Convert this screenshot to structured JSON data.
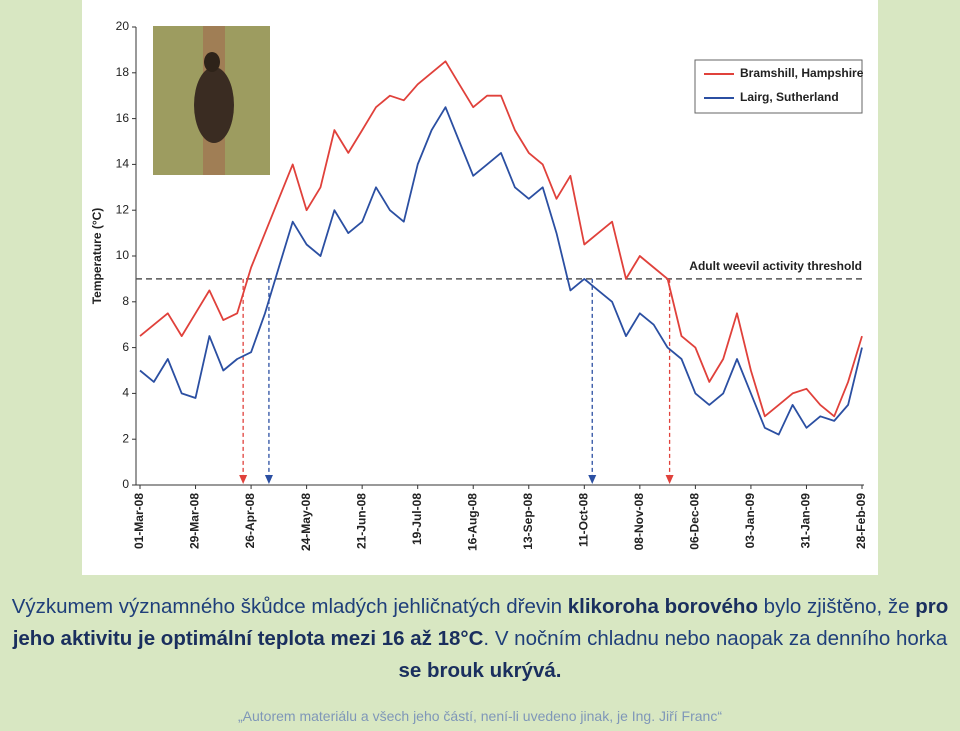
{
  "chart_data": {
    "type": "line",
    "y_label": "Temperature (°C)",
    "x": [
      "2008-03-01",
      "2008-03-08",
      "2008-03-15",
      "2008-03-22",
      "2008-03-29",
      "2008-04-05",
      "2008-04-12",
      "2008-04-19",
      "2008-04-26",
      "2008-05-03",
      "2008-05-10",
      "2008-05-17",
      "2008-05-24",
      "2008-05-31",
      "2008-06-07",
      "2008-06-14",
      "2008-06-21",
      "2008-06-28",
      "2008-07-05",
      "2008-07-12",
      "2008-07-19",
      "2008-07-26",
      "2008-08-02",
      "2008-08-09",
      "2008-08-16",
      "2008-08-23",
      "2008-08-30",
      "2008-09-06",
      "2008-09-13",
      "2008-09-20",
      "2008-09-27",
      "2008-10-04",
      "2008-10-11",
      "2008-10-18",
      "2008-10-25",
      "2008-11-01",
      "2008-11-08",
      "2008-11-15",
      "2008-11-22",
      "2008-11-29",
      "2008-12-06",
      "2008-12-13",
      "2008-12-20",
      "2008-12-27",
      "2009-01-03",
      "2009-01-10",
      "2009-01-17",
      "2009-01-24",
      "2009-01-31",
      "2009-02-07",
      "2009-02-14",
      "2009-02-21",
      "2009-02-28"
    ],
    "series": [
      {
        "name": "Bramshill, Hampshire",
        "color": "#e0413b",
        "values": [
          6.5,
          7,
          7.5,
          6.5,
          7.5,
          8.5,
          7.2,
          7.5,
          9.5,
          11,
          12.5,
          14,
          12,
          13,
          15.5,
          14.5,
          15.5,
          16.5,
          17,
          16.8,
          17.5,
          18,
          18.5,
          17.5,
          16.5,
          17,
          17,
          15.5,
          14.5,
          14,
          12.5,
          13.5,
          10.5,
          11,
          11.5,
          9,
          10,
          9.5,
          9,
          6.5,
          6,
          4.5,
          5.5,
          7.5,
          5,
          3,
          3.5,
          4,
          4.2,
          3.5,
          3,
          4.5,
          6.5
        ]
      },
      {
        "name": "Lairg, Sutherland",
        "color": "#2b4fa2",
        "values": [
          5,
          4.5,
          5.5,
          4,
          3.8,
          6.5,
          5,
          5.5,
          5.8,
          7.5,
          9.5,
          11.5,
          10.5,
          10,
          12,
          11,
          11.5,
          13,
          12,
          11.5,
          14,
          15.5,
          16.5,
          15,
          13.5,
          14,
          14.5,
          13,
          12.5,
          13,
          11,
          8.5,
          9,
          8.5,
          8,
          6.5,
          7.5,
          7,
          6,
          5.5,
          4,
          3.5,
          4,
          5.5,
          4,
          2.5,
          2.2,
          3.5,
          2.5,
          3,
          2.8,
          3.5,
          6
        ]
      }
    ],
    "xlim": [
      "2008-03-01",
      "2009-02-28"
    ],
    "xticks": [
      {
        "value": "2008-03-01",
        "label": "01-Mar-08"
      },
      {
        "value": "2008-03-29",
        "label": "29-Mar-08"
      },
      {
        "value": "2008-04-26",
        "label": "26-Apr-08"
      },
      {
        "value": "2008-05-24",
        "label": "24-May-08"
      },
      {
        "value": "2008-06-21",
        "label": "21-Jun-08"
      },
      {
        "value": "2008-07-19",
        "label": "19-Jul-08"
      },
      {
        "value": "2008-08-16",
        "label": "16-Aug-08"
      },
      {
        "value": "2008-09-13",
        "label": "13-Sep-08"
      },
      {
        "value": "2008-10-11",
        "label": "11-Oct-08"
      },
      {
        "value": "2008-11-08",
        "label": "08-Nov-08"
      },
      {
        "value": "2008-12-06",
        "label": "06-Dec-08"
      },
      {
        "value": "2009-01-03",
        "label": "03-Jan-09"
      },
      {
        "value": "2009-01-31",
        "label": "31-Jan-09"
      },
      {
        "value": "2009-02-28",
        "label": "28-Feb-09"
      }
    ],
    "ylim": [
      0,
      20
    ],
    "yticks": [
      0,
      2,
      4,
      6,
      8,
      10,
      12,
      14,
      16,
      18,
      20
    ],
    "legend": "top-right",
    "threshold": {
      "value": 9,
      "label": "Adult weevil activity threshold"
    },
    "markers": [
      {
        "x": "2008-04-22",
        "color": "#e0413b"
      },
      {
        "x": "2008-05-05",
        "color": "#2b4fa2"
      },
      {
        "x": "2008-10-15",
        "color": "#2b4fa2"
      },
      {
        "x": "2008-11-23",
        "color": "#e0413b"
      }
    ]
  },
  "text": {
    "segments": [
      {
        "text": "Výzkumem významného škůdce mladých jehličnatých dřevin ",
        "bold": false
      },
      {
        "text": "klikoroha borového",
        "bold": true
      },
      {
        "text": " bylo zjištěno, že ",
        "bold": false
      },
      {
        "text": "pro jeho aktivitu je optimální teplota mezi 16 až 18°C",
        "bold": true
      },
      {
        "text": ". V nočním chladnu nebo naopak za denního horka ",
        "bold": false
      },
      {
        "text": "se brouk ukrývá.",
        "bold": true
      }
    ]
  },
  "footer": "„Autorem materiálu a všech jeho částí, není-li uvedeno jinak, je Ing. Jiří Franc“"
}
